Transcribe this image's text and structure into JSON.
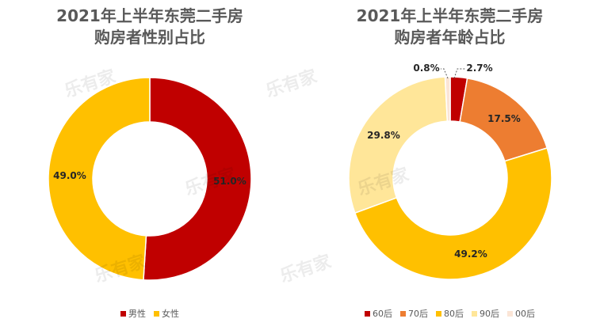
{
  "watermark": "乐有家",
  "chart_data": [
    {
      "type": "pie",
      "title_line1": "2021年上半年东莞二手房",
      "title_line2": "购房者性别占比",
      "categories": [
        "男性",
        "女性"
      ],
      "values": [
        51.0,
        49.0
      ],
      "labels": [
        "51.0%",
        "49.0%"
      ],
      "colors": [
        "#C00000",
        "#FFC000"
      ],
      "legend_position": "bottom"
    },
    {
      "type": "pie",
      "title_line1": "2021年上半年东莞二手房",
      "title_line2": "购房者年龄占比",
      "categories": [
        "60后",
        "70后",
        "80后",
        "90后",
        "00后"
      ],
      "values": [
        2.7,
        17.5,
        49.2,
        29.8,
        0.8
      ],
      "labels": [
        "2.7%",
        "17.5%",
        "49.2%",
        "29.8%",
        "0.8%"
      ],
      "colors": [
        "#C00000",
        "#ED7D31",
        "#FFC000",
        "#FFE699",
        "#FBE5D6"
      ],
      "legend_position": "bottom"
    }
  ]
}
